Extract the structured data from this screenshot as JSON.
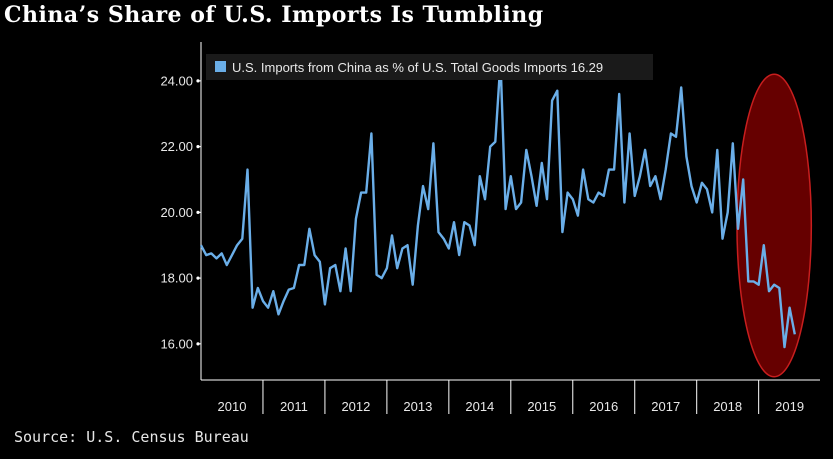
{
  "title": "China’s Share of U.S. Imports Is Tumbling",
  "source": "Source: U.S. Census Bureau",
  "colors": {
    "background": "#000000",
    "line": "#6aaee8",
    "highlight_fill": "#6b0000",
    "highlight_stroke": "#c81e1e",
    "axis": "#ffffff"
  },
  "chart_data": {
    "type": "line",
    "title": "China’s Share of U.S. Imports Is Tumbling",
    "xlabel": "",
    "ylabel": "",
    "ylim": [
      14.9,
      25.0
    ],
    "yticks": [
      16.0,
      18.0,
      20.0,
      22.0,
      24.0
    ],
    "ytick_labels": [
      "16.00",
      "18.00",
      "20.00",
      "22.00",
      "24.00"
    ],
    "xlim": [
      2010.0,
      2019.99
    ],
    "xtick_labels": [
      "2010",
      "2011",
      "2012",
      "2013",
      "2014",
      "2015",
      "2016",
      "2017",
      "2018",
      "2019"
    ],
    "grid": false,
    "legend_position": "top-left",
    "last_value_label": "16.29",
    "series": [
      {
        "name": "U.S. Imports from China as % of U.S. Total Goods Imports",
        "start": "2010-01",
        "frequency": "monthly",
        "values": [
          19.0,
          18.7,
          18.75,
          18.6,
          18.75,
          18.4,
          18.7,
          19.0,
          19.2,
          21.3,
          17.1,
          17.7,
          17.3,
          17.1,
          17.6,
          16.9,
          17.3,
          17.65,
          17.7,
          18.4,
          18.4,
          19.5,
          18.7,
          18.5,
          17.2,
          18.3,
          18.4,
          17.6,
          18.9,
          17.6,
          19.8,
          20.6,
          20.6,
          22.4,
          18.1,
          18.0,
          18.3,
          19.3,
          18.3,
          18.9,
          19.0,
          17.8,
          19.6,
          20.8,
          20.1,
          22.1,
          19.4,
          19.2,
          18.9,
          19.7,
          18.7,
          19.7,
          19.6,
          19.0,
          21.1,
          20.4,
          22.0,
          22.15,
          24.6,
          20.1,
          21.1,
          20.1,
          20.3,
          21.9,
          21.1,
          20.2,
          21.5,
          20.4,
          23.4,
          23.7,
          19.4,
          20.6,
          20.4,
          19.9,
          21.3,
          20.4,
          20.3,
          20.6,
          20.5,
          21.3,
          21.3,
          23.6,
          20.3,
          22.4,
          20.5,
          21.1,
          21.9,
          20.8,
          21.1,
          20.4,
          21.3,
          22.4,
          22.3,
          23.8,
          21.7,
          20.8,
          20.3,
          20.9,
          20.7,
          20.0,
          21.9,
          19.2,
          20.0,
          22.1,
          19.5,
          21.0,
          17.9,
          17.9,
          17.8,
          19.0,
          17.6,
          17.8,
          17.7,
          15.9,
          17.1,
          16.29
        ]
      }
    ],
    "annotations": [
      {
        "type": "ellipse",
        "x_center": 2019.25,
        "y_center": 19.6,
        "x_radius": 0.6,
        "y_radius": 4.6
      }
    ]
  }
}
